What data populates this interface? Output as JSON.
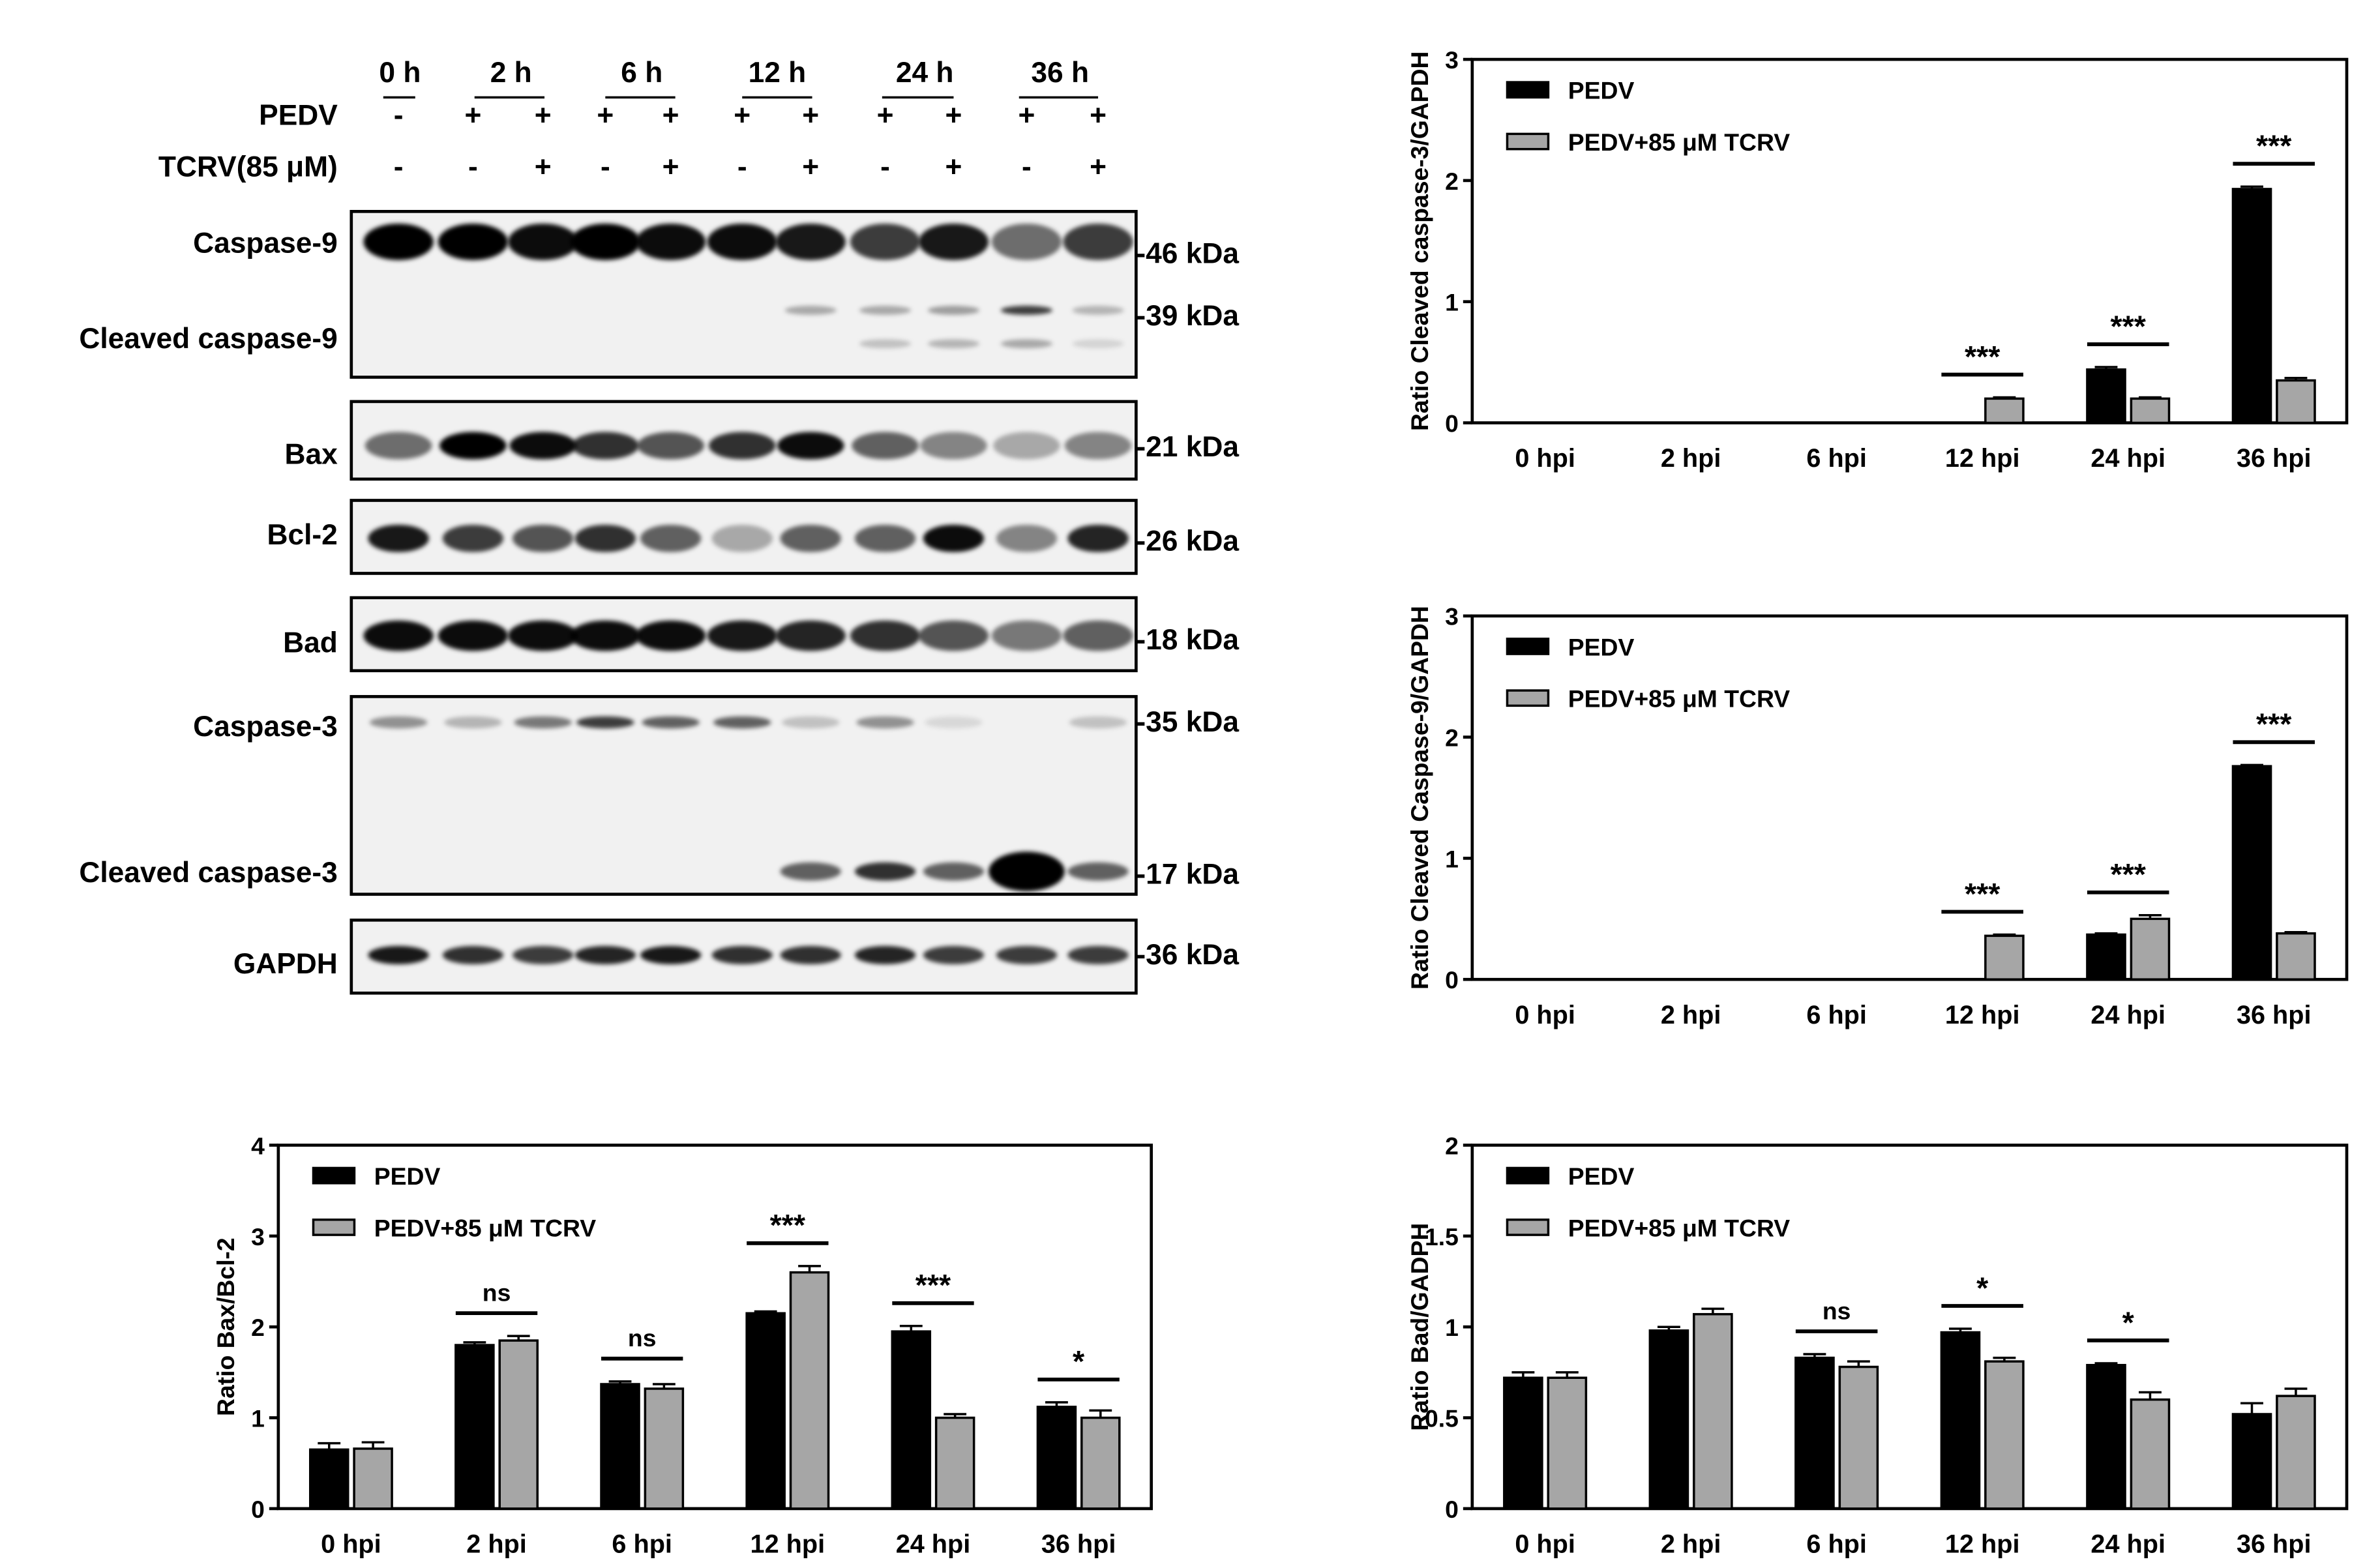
{
  "blot": {
    "time_labels": [
      "0 h",
      "2 h",
      "6 h",
      "12 h",
      "24 h",
      "36 h"
    ],
    "treatment_rows": [
      {
        "label": "PEDV",
        "signs": [
          "-",
          "+",
          "+",
          "+",
          "+",
          "+",
          "+",
          "+",
          "+",
          "+",
          "+"
        ]
      },
      {
        "label": "TCRV(85 μM)",
        "signs": [
          "-",
          "-",
          "+",
          "-",
          "+",
          "-",
          "+",
          "-",
          "+",
          "-",
          "+"
        ]
      }
    ],
    "panels": [
      {
        "labels": [
          "Caspase-9",
          "Cleaved caspase-9"
        ],
        "markers": [
          "-46 kDa",
          "-39 kDa"
        ]
      },
      {
        "labels": [
          "Bax"
        ],
        "markers": [
          "-21 kDa"
        ]
      },
      {
        "labels": [
          "Bcl-2"
        ],
        "markers": [
          "-26 kDa"
        ]
      },
      {
        "labels": [
          "Bad"
        ],
        "markers": [
          "-18 kDa"
        ]
      },
      {
        "labels": [
          "Caspase-3",
          "Cleaved caspase-3"
        ],
        "markers": [
          "-35 kDa",
          "-17 kDa"
        ]
      },
      {
        "labels": [
          "GAPDH"
        ],
        "markers": [
          "-36 kDa"
        ]
      }
    ]
  },
  "colors": {
    "series1": "#000000",
    "series2": "#a6a6a6"
  },
  "chart_data": [
    {
      "type": "bar",
      "categories": [
        "0 hpi",
        "2 hpi",
        "6 hpi",
        "12 hpi",
        "24 hpi",
        "36 hpi"
      ],
      "series": [
        {
          "name": "PEDV",
          "values": [
            0,
            0,
            0,
            0,
            0.44,
            1.93
          ],
          "errors": [
            0,
            0,
            0,
            0,
            0.02,
            0.02
          ]
        },
        {
          "name": "PEDV+85 μM TCRV",
          "values": [
            0,
            0,
            0,
            0.2,
            0.2,
            0.35
          ],
          "errors": [
            0,
            0,
            0,
            0.01,
            0.01,
            0.02
          ]
        }
      ],
      "title": "",
      "xlabel": "",
      "ylabel": "Ratio Cleaved caspase-3/GAPDH",
      "ylim": [
        0,
        3
      ],
      "yticks": [
        "0",
        "1",
        "2",
        "3"
      ],
      "significance": [
        "",
        "",
        "",
        "***",
        "***",
        "***"
      ],
      "legend": "top-left",
      "grid": false
    },
    {
      "type": "bar",
      "categories": [
        "0 hpi",
        "2 hpi",
        "6 hpi",
        "12 hpi",
        "24 hpi",
        "36 hpi"
      ],
      "series": [
        {
          "name": "PEDV",
          "values": [
            0,
            0,
            0,
            0,
            0.37,
            1.76
          ],
          "errors": [
            0,
            0,
            0,
            0,
            0.01,
            0.01
          ]
        },
        {
          "name": "PEDV+85 μM TCRV",
          "values": [
            0,
            0,
            0,
            0.36,
            0.5,
            0.38
          ],
          "errors": [
            0,
            0,
            0,
            0.01,
            0.03,
            0.01
          ]
        }
      ],
      "title": "",
      "xlabel": "",
      "ylabel": "Ratio Cleaved Caspase-9/GAPDH",
      "ylim": [
        0,
        3
      ],
      "yticks": [
        "0",
        "1",
        "2",
        "3"
      ],
      "significance": [
        "",
        "",
        "",
        "***",
        "***",
        "***"
      ],
      "legend": "top-left",
      "grid": false
    },
    {
      "type": "bar",
      "categories": [
        "0 hpi",
        "2 hpi",
        "6 hpi",
        "12 hpi",
        "24 hpi",
        "36 hpi"
      ],
      "series": [
        {
          "name": "PEDV",
          "values": [
            0.65,
            1.8,
            1.37,
            2.15,
            1.95,
            1.12
          ],
          "errors": [
            0.07,
            0.03,
            0.03,
            0.02,
            0.06,
            0.05
          ]
        },
        {
          "name": "PEDV+85 μM TCRV",
          "values": [
            0.66,
            1.85,
            1.32,
            2.6,
            1.0,
            1.0
          ],
          "errors": [
            0.07,
            0.05,
            0.05,
            0.07,
            0.04,
            0.08
          ]
        }
      ],
      "title": "",
      "xlabel": "",
      "ylabel": "Ratio Bax/Bcl-2",
      "ylim": [
        0,
        4
      ],
      "yticks": [
        "0",
        "1",
        "2",
        "3",
        "4"
      ],
      "significance": [
        "",
        "ns",
        "ns",
        "***",
        "***",
        "*"
      ],
      "legend": "top-left",
      "grid": false
    },
    {
      "type": "bar",
      "categories": [
        "0 hpi",
        "2 hpi",
        "6 hpi",
        "12 hpi",
        "24 hpi",
        "36 hpi"
      ],
      "series": [
        {
          "name": "PEDV",
          "values": [
            0.72,
            0.98,
            0.83,
            0.97,
            0.79,
            0.52
          ],
          "errors": [
            0.03,
            0.02,
            0.02,
            0.02,
            0.01,
            0.06
          ]
        },
        {
          "name": "PEDV+85 μM TCRV",
          "values": [
            0.72,
            1.07,
            0.78,
            0.81,
            0.6,
            0.62
          ],
          "errors": [
            0.03,
            0.03,
            0.03,
            0.02,
            0.04,
            0.04
          ]
        }
      ],
      "title": "",
      "xlabel": "",
      "ylabel": "Ratio Bad/GADPH",
      "ylim": [
        0,
        2
      ],
      "yticks": [
        "0",
        "0.5",
        "1",
        "1.5",
        "2"
      ],
      "significance": [
        "",
        "",
        "ns",
        "*",
        "*",
        ""
      ],
      "legend": "top-left",
      "grid": false
    }
  ]
}
